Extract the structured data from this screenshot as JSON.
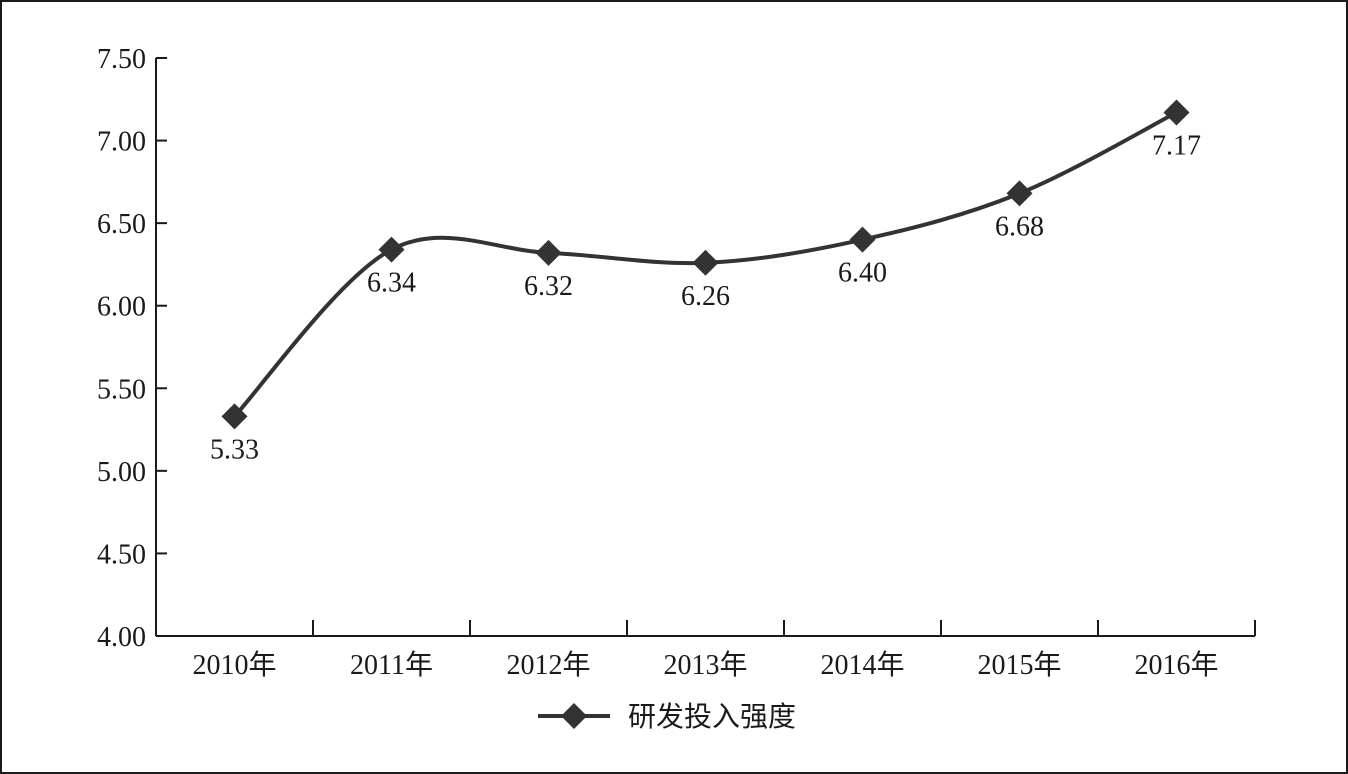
{
  "chart_data": {
    "type": "line",
    "categories": [
      "2010年",
      "2011年",
      "2012年",
      "2013年",
      "2014年",
      "2015年",
      "2016年"
    ],
    "series": [
      {
        "name": "研发投入强度",
        "values": [
          5.33,
          6.34,
          6.32,
          6.26,
          6.4,
          6.68,
          7.17
        ],
        "labels": [
          "5.33",
          "6.34",
          "6.32",
          "6.26",
          "6.40",
          "6.68",
          "7.17"
        ],
        "color": "#333333",
        "marker": "diamond",
        "smooth": true
      }
    ],
    "yticks": [
      "4.00",
      "4.50",
      "5.00",
      "5.50",
      "6.00",
      "6.50",
      "7.00",
      "7.50"
    ],
    "ylim": [
      4.0,
      7.5
    ],
    "title": "",
    "xlabel": "",
    "ylabel": "",
    "grid": false,
    "legend_position": "bottom-center"
  }
}
